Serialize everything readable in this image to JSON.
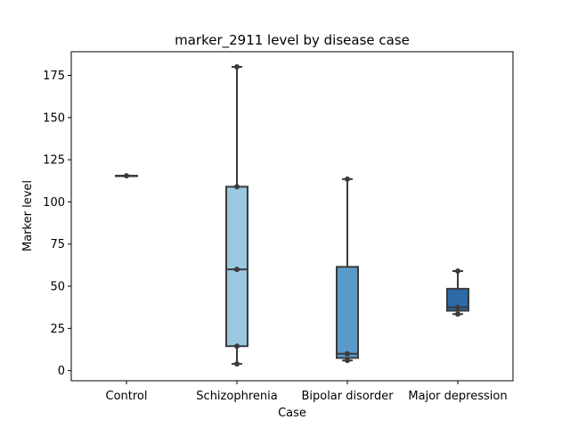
{
  "chart_data": {
    "type": "box",
    "title": "marker_2911 level by disease case",
    "xlabel": "Case",
    "ylabel": "Marker level",
    "categories": [
      "Control",
      "Schizophrenia",
      "Bipolar disorder",
      "Major depression"
    ],
    "ylim": [
      -6,
      189
    ],
    "yticks": [
      0,
      25,
      50,
      75,
      100,
      125,
      150,
      175
    ],
    "grid": false,
    "boxes": [
      {
        "category": "Control",
        "min": 115.5,
        "q1": 115.5,
        "median": 115.5,
        "q3": 115.5,
        "max": 115.5,
        "points": [
          115.5
        ],
        "color": "#c6dbef"
      },
      {
        "category": "Schizophrenia",
        "min": 4,
        "q1": 14.5,
        "median": 60,
        "q3": 109,
        "max": 180,
        "points": [
          4,
          14.5,
          60,
          109,
          180
        ],
        "color": "#9ac8e0"
      },
      {
        "category": "Bipolar disorder",
        "min": 6,
        "q1": 7.5,
        "median": 10,
        "q3": 61.5,
        "max": 113.5,
        "points": [
          6,
          10,
          113.5
        ],
        "color": "#5a9ac9"
      },
      {
        "category": "Major depression",
        "min": 33.5,
        "q1": 35.5,
        "median": 37.5,
        "q3": 48.5,
        "max": 59,
        "points": [
          33.5,
          37.5,
          59
        ],
        "color": "#2c6aa8"
      }
    ]
  }
}
